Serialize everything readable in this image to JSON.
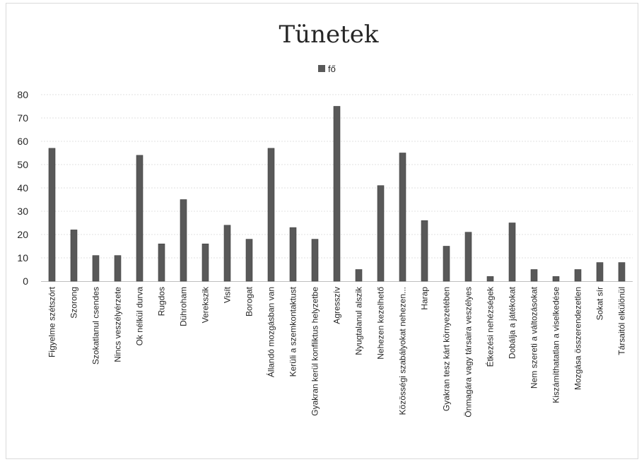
{
  "chart_data": {
    "type": "bar",
    "title": "Tünetek",
    "legend": {
      "label": "fő",
      "position": "top"
    },
    "grid": true,
    "ylim": [
      0,
      80
    ],
    "yticks": [
      0,
      10,
      20,
      30,
      40,
      50,
      60,
      70,
      80
    ],
    "categories": [
      "Figyelme szétszórt",
      "Szorong",
      "Szokatlanul csendes",
      "Nincs veszélyérzete",
      "Ok nélkül durva",
      "Rugdos",
      "Dühroham",
      "Verekszik",
      "Visít",
      "Borogat",
      "Állandó mozgásban van",
      "Kerüli a szemkontaktust",
      "Gyakran kerül konfliktus helyzetbe",
      "Agresszív",
      "Nyugtalanul alszik",
      "Nehezen kezelhető",
      "Közösségi szabályokat nehezen...",
      "Harap",
      "Gyakran tesz kárt környezetében",
      "Önmagára vagy társaira veszélyes",
      "Étkezési nehézségek",
      "Dobálja a játékokat",
      "Nem szereti a változásokat",
      "Kiszámíthatatlan a viselkedése",
      "Mozgása összerendezetlen",
      "Sokat sír",
      "Társaitól elkülönül"
    ],
    "series": [
      {
        "name": "fő",
        "color": "#595959",
        "values": [
          57,
          22,
          11,
          11,
          54,
          16,
          35,
          16,
          24,
          18,
          57,
          23,
          18,
          75,
          5,
          41,
          55,
          26,
          15,
          21,
          2,
          25,
          5,
          2,
          5,
          8,
          8
        ]
      }
    ]
  }
}
